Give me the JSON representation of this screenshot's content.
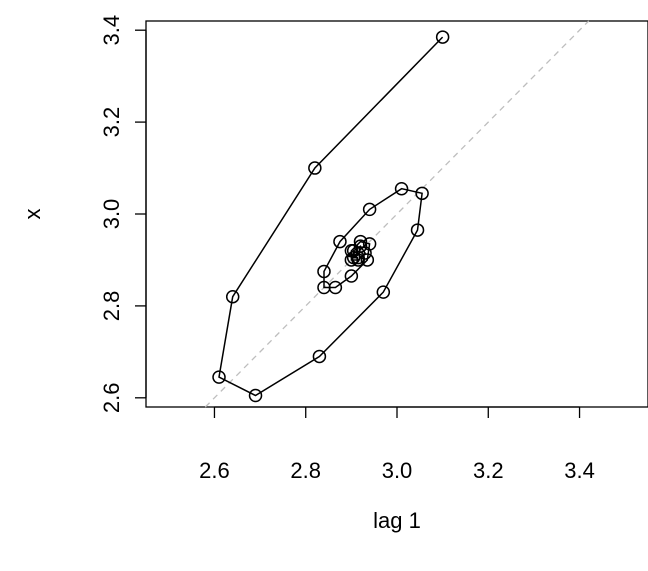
{
  "chart_data": {
    "type": "line",
    "xlabel": "lag 1",
    "ylabel": "x",
    "xlim": [
      2.45,
      3.55
    ],
    "ylim": [
      2.58,
      3.42
    ],
    "x_ticks": [
      "2.6",
      "2.8",
      "3.0",
      "3.2",
      "3.4"
    ],
    "y_ticks": [
      "2.6",
      "2.8",
      "3.0",
      "3.2",
      "3.4"
    ],
    "x_tick_values": [
      2.6,
      2.8,
      3.0,
      3.2,
      3.4
    ],
    "y_tick_values": [
      2.6,
      2.8,
      3.0,
      3.2,
      3.4
    ],
    "reference_line": {
      "slope": 1,
      "intercept": 0,
      "style": "dashed",
      "color": "#bebebe"
    },
    "marker": "open-circle",
    "line_color": "#000000",
    "series": [
      {
        "x": [
          3.1,
          2.82,
          2.64,
          2.61,
          2.69,
          2.83,
          2.97,
          3.045,
          3.055,
          3.01,
          2.94,
          2.875,
          2.84,
          2.84,
          2.865,
          2.9,
          2.935,
          2.94,
          2.92,
          2.9,
          2.9,
          2.915,
          2.93,
          2.92,
          2.905,
          2.905,
          2.915
        ],
        "y": [
          3.385,
          3.1,
          2.82,
          2.645,
          2.605,
          2.69,
          2.83,
          2.965,
          3.045,
          3.055,
          3.01,
          2.94,
          2.875,
          2.84,
          2.84,
          2.865,
          2.9,
          2.935,
          2.94,
          2.92,
          2.9,
          2.9,
          2.915,
          2.93,
          2.92,
          2.905,
          2.905
        ]
      }
    ]
  }
}
